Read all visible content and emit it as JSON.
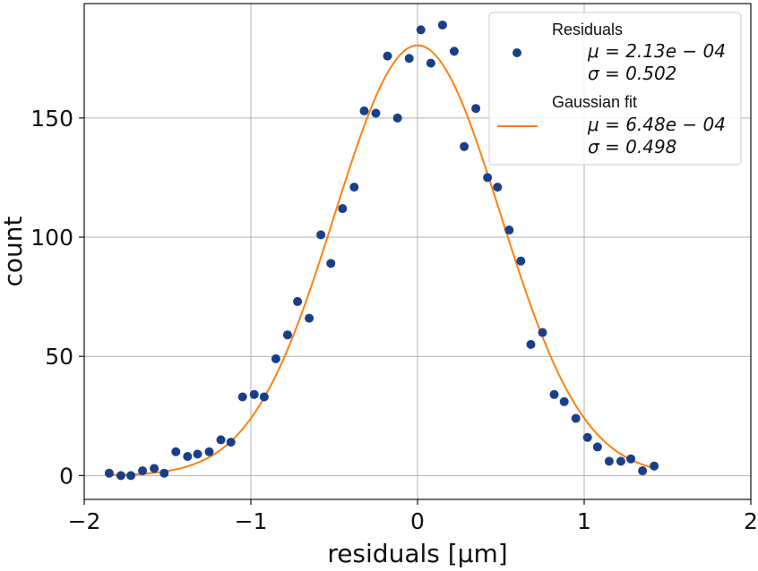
{
  "chart_data": {
    "type": "scatter",
    "xlabel": "residuals [μm]",
    "ylabel": "count",
    "xlim": [
      -2,
      2
    ],
    "ylim": [
      -10,
      198
    ],
    "x_ticks": [
      -2,
      -1,
      0,
      1,
      2
    ],
    "y_ticks": [
      0,
      50,
      100,
      150
    ],
    "x_tick_labels": [
      "−2",
      "−1",
      "0",
      "1",
      "2"
    ],
    "y_tick_labels": [
      "0",
      "50",
      "100",
      "150"
    ],
    "grid": true,
    "legend_position": "top-right",
    "colors": {
      "points": "#1a3f8a",
      "fit": "#ff7f0e",
      "grid": "#b0b0b0"
    },
    "series": [
      {
        "name": "Residuals",
        "kind": "scatter",
        "stats": [
          "μ = 2.13e − 04",
          "σ = 0.502"
        ],
        "x": [
          -1.85,
          -1.78,
          -1.72,
          -1.65,
          -1.58,
          -1.52,
          -1.45,
          -1.38,
          -1.32,
          -1.25,
          -1.18,
          -1.12,
          -1.05,
          -0.98,
          -0.92,
          -0.85,
          -0.78,
          -0.72,
          -0.65,
          -0.58,
          -0.52,
          -0.45,
          -0.38,
          -0.32,
          -0.25,
          -0.18,
          -0.12,
          -0.05,
          0.02,
          0.08,
          0.15,
          0.22,
          0.28,
          0.35,
          0.42,
          0.48,
          0.55,
          0.62,
          0.68,
          0.75,
          0.82,
          0.88,
          0.95,
          1.02,
          1.08,
          1.15,
          1.22,
          1.28,
          1.35,
          1.42
        ],
        "y": [
          1,
          0,
          0,
          2,
          3,
          1,
          10,
          8,
          9,
          10,
          15,
          14,
          33,
          34,
          33,
          49,
          59,
          73,
          66,
          101,
          89,
          112,
          121,
          153,
          152,
          176,
          150,
          175,
          187,
          173,
          189,
          178,
          138,
          154,
          125,
          121,
          103,
          90,
          55,
          60,
          34,
          31,
          24,
          16,
          12,
          6,
          6,
          7,
          2,
          4
        ]
      },
      {
        "name": "Gaussian fit",
        "kind": "line",
        "stats": [
          "μ = 6.48e − 04",
          "σ = 0.498"
        ],
        "mu": 0.000648,
        "sigma": 0.498,
        "amplitude": 180.5,
        "x_range": [
          -1.85,
          1.42
        ]
      }
    ]
  }
}
